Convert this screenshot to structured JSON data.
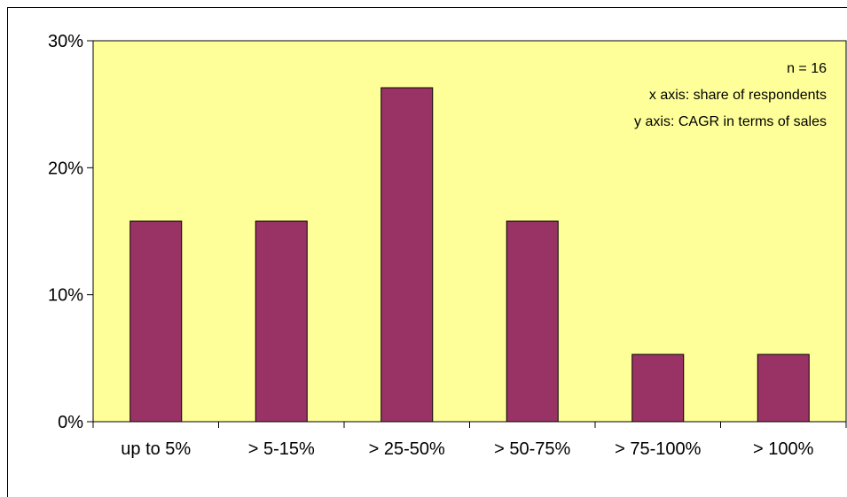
{
  "chart_data": {
    "type": "bar",
    "categories": [
      "up to 5%",
      "> 5-15%",
      "> 25-50%",
      "> 50-75%",
      "> 75-100%",
      "> 100%"
    ],
    "values": [
      15.8,
      15.8,
      26.3,
      15.8,
      5.3,
      5.3
    ],
    "ylim": [
      0,
      30
    ],
    "yticks": [
      0,
      10,
      20,
      30
    ],
    "ytick_labels": [
      "0%",
      "10%",
      "20%",
      "30%"
    ],
    "annotations": [
      "n = 16",
      "x axis: share of respondents",
      "y axis: CAGR in terms of sales"
    ],
    "grid": false,
    "colors": {
      "plot_background": "#ffff99",
      "bar_fill": "#993366",
      "bar_stroke": "#000000"
    }
  }
}
